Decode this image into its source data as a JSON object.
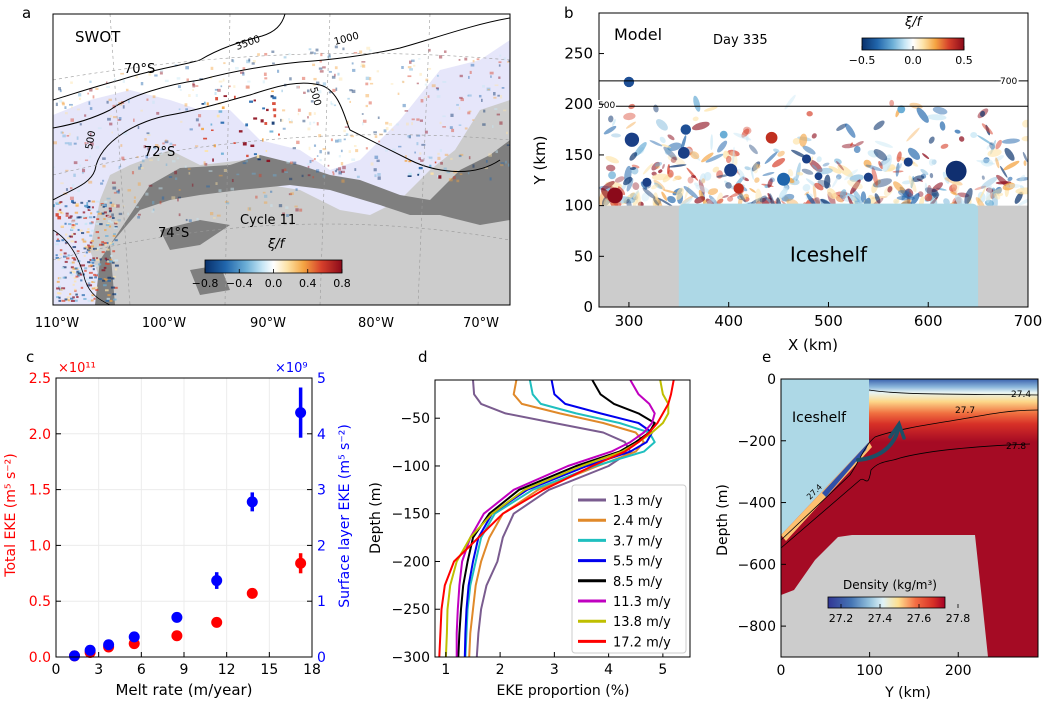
{
  "panels": {
    "a": {
      "letter": "a"
    },
    "b": {
      "letter": "b"
    },
    "c": {
      "letter": "c"
    },
    "d": {
      "letter": "d"
    },
    "e": {
      "letter": "e"
    }
  },
  "chart_data": [
    {
      "id": "a",
      "type": "heatmap",
      "title": "SWOT",
      "annotation": "Cycle 11",
      "colorbar": {
        "label": "ξ/f",
        "ticks": [
          "−0.8",
          "−0.4",
          "0.0",
          "0.4",
          "0.8"
        ],
        "range": [
          -0.8,
          0.8
        ],
        "cmap": "RdBu_r"
      },
      "xtick_labels": [
        "110°W",
        "100°W",
        "90°W",
        "80°W",
        "70°W"
      ],
      "lat_labels": [
        "70°S",
        "72°S",
        "74°S"
      ],
      "contour_labels": [
        "3500",
        "1000",
        "500",
        "500"
      ],
      "colors": {
        "land_ice": "#cccccc",
        "land": "#7f7f7f",
        "shelf": "#e6e6fa"
      }
    },
    {
      "id": "b",
      "type": "heatmap",
      "title": "Model",
      "annotation": "Day 335",
      "region_label": "Iceshelf",
      "xlabel": "X (km)",
      "ylabel": "Y (km)",
      "xlim": [
        270,
        700
      ],
      "ylim": [
        0,
        290
      ],
      "xticks": [
        300,
        400,
        500,
        600,
        700
      ],
      "yticks": [
        0,
        50,
        100,
        150,
        200,
        250
      ],
      "contours": [
        {
          "label": "700",
          "y": 223
        },
        {
          "label": "500",
          "y": 198
        }
      ],
      "iceshelf": {
        "x": [
          350,
          650
        ],
        "y": [
          0,
          100
        ]
      },
      "colorbar": {
        "label": "ξ/f",
        "ticks": [
          "−0.5",
          "0.0",
          "0.5"
        ],
        "range": [
          -0.5,
          0.5
        ],
        "cmap": "RdBu_r"
      },
      "colors": {
        "iceshelf": "#add8e6",
        "land": "#cccccc"
      }
    },
    {
      "id": "c",
      "type": "scatter",
      "xlabel": "Melt rate (m/year)",
      "ylabel_left": "Total EKE (m⁵ s⁻²)",
      "ylabel_right": "Surface layer EKE (m⁵ s⁻²)",
      "left_multiplier": "×10¹¹",
      "right_multiplier": "×10⁹",
      "xlim": [
        0,
        18
      ],
      "ylim_left": [
        0,
        2.5
      ],
      "ylim_right": [
        0,
        5
      ],
      "xticks": [
        0,
        3,
        6,
        9,
        12,
        15,
        18
      ],
      "yticks_left": [
        "0.0",
        "0.5",
        "1.0",
        "1.5",
        "2.0",
        "2.5"
      ],
      "yticks_right": [
        "0",
        "1",
        "2",
        "3",
        "4",
        "5"
      ],
      "grid": true,
      "series": [
        {
          "name": "Total EKE",
          "axis": "left",
          "color": "#ff0000",
          "x": [
            1.3,
            2.4,
            3.7,
            5.5,
            8.5,
            11.3,
            13.8,
            17.2
          ],
          "y": [
            0.01,
            0.04,
            0.09,
            0.12,
            0.19,
            0.31,
            0.57,
            0.84
          ],
          "err": [
            0,
            0,
            0,
            0,
            0,
            0,
            0,
            0.09
          ]
        },
        {
          "name": "Surface layer EKE",
          "axis": "right",
          "color": "#0000ff",
          "x": [
            1.3,
            2.4,
            3.7,
            5.5,
            8.5,
            11.3,
            13.8,
            17.2
          ],
          "y": [
            0.02,
            0.12,
            0.22,
            0.36,
            0.71,
            1.37,
            2.78,
            4.38
          ],
          "err": [
            0,
            0,
            0,
            0,
            0,
            0.15,
            0.17,
            0.45
          ]
        }
      ]
    },
    {
      "id": "d",
      "type": "line",
      "xlabel": "EKE proportion (%)",
      "ylabel": "Depth (m)",
      "xlim": [
        0.8,
        5.5
      ],
      "ylim": [
        -300,
        -10
      ],
      "xticks": [
        1,
        2,
        3,
        4,
        5
      ],
      "yticks": [
        -50,
        -100,
        -150,
        -200,
        -250,
        -300
      ],
      "legend": "lower-right",
      "depth": [
        -10,
        -25,
        -35,
        -45,
        -55,
        -65,
        -75,
        -85,
        -100,
        -125,
        -150,
        -175,
        -200,
        -225,
        -250,
        -275,
        -300
      ],
      "series": [
        {
          "name": "1.3 m/y",
          "color": "#7a5c8f",
          "values": [
            1.5,
            1.52,
            1.65,
            2.1,
            3.0,
            3.9,
            4.3,
            4.4,
            4.0,
            2.9,
            2.25,
            2.05,
            1.95,
            1.75,
            1.65,
            1.6,
            1.57
          ]
        },
        {
          "name": "2.4 m/y",
          "color": "#e0892a",
          "values": [
            2.3,
            2.25,
            2.4,
            3.1,
            3.9,
            4.5,
            4.65,
            4.5,
            3.8,
            2.7,
            2.05,
            1.8,
            1.65,
            1.55,
            1.5,
            1.45,
            1.43
          ]
        },
        {
          "name": "3.7 m/y",
          "color": "#1fbfbf",
          "values": [
            2.55,
            2.6,
            2.75,
            3.4,
            4.2,
            4.75,
            4.85,
            4.65,
            3.75,
            2.6,
            1.9,
            1.65,
            1.55,
            1.45,
            1.4,
            1.38,
            1.36
          ]
        },
        {
          "name": "5.5 m/y",
          "color": "#0000ee",
          "values": [
            2.95,
            3.0,
            3.2,
            3.85,
            4.55,
            4.8,
            4.7,
            4.4,
            3.6,
            2.5,
            1.85,
            1.6,
            1.5,
            1.42,
            1.38,
            1.36,
            1.35
          ]
        },
        {
          "name": "8.5 m/y",
          "color": "#000000",
          "values": [
            3.7,
            3.85,
            4.1,
            4.55,
            4.85,
            4.75,
            4.5,
            4.2,
            3.4,
            2.35,
            1.8,
            1.5,
            1.4,
            1.32,
            1.28,
            1.25,
            1.23
          ]
        },
        {
          "name": "11.3 m/y",
          "color": "#c000c0",
          "values": [
            4.4,
            4.55,
            4.75,
            4.85,
            4.8,
            4.65,
            4.4,
            4.05,
            3.25,
            2.25,
            1.7,
            1.45,
            1.3,
            1.25,
            1.22,
            1.2,
            1.2
          ]
        },
        {
          "name": "13.8 m/y",
          "color": "#bfbf00",
          "values": [
            4.95,
            5.0,
            5.1,
            5.1,
            5.0,
            4.8,
            4.55,
            4.25,
            3.5,
            2.45,
            1.85,
            1.45,
            1.2,
            1.08,
            1.03,
            1.02,
            1.0
          ]
        },
        {
          "name": "17.2 m/y",
          "color": "#ff0000",
          "values": [
            5.2,
            5.15,
            5.1,
            5.0,
            4.9,
            4.75,
            4.55,
            4.3,
            3.7,
            2.8,
            2.05,
            1.6,
            1.15,
            0.98,
            0.92,
            0.9,
            0.88
          ]
        }
      ]
    },
    {
      "id": "e",
      "type": "heatmap",
      "xlabel": "Y (km)",
      "ylabel": "Depth (m)",
      "xlim": [
        0,
        290
      ],
      "ylim": [
        -900,
        0
      ],
      "xticks": [
        0,
        100,
        200
      ],
      "yticks": [
        0,
        -200,
        -400,
        -600,
        -800
      ],
      "region_label": "Iceshelf",
      "contour_labels": [
        "27.4",
        "27.7",
        "27.8",
        "27.4"
      ],
      "colorbar": {
        "label": "Density (kg/m³)",
        "ticks": [
          "27.2",
          "27.4",
          "27.6",
          "27.8"
        ],
        "range": [
          27.2,
          27.8
        ],
        "cmap": "RdYlBu_r"
      },
      "colors": {
        "iceshelf": "#add8e6",
        "bathymetry": "#cccccc",
        "dense": "#a50b24",
        "arrow": "#1d4f66"
      }
    }
  ]
}
